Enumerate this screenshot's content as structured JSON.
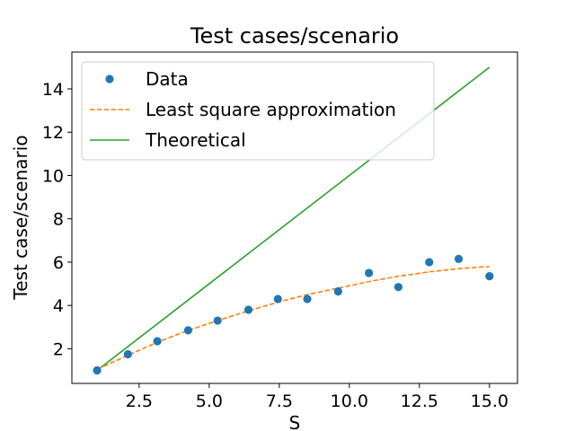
{
  "chart_data": {
    "type": "scatter",
    "title": "Test cases/scenario",
    "xlabel": "S",
    "ylabel": "Test case/scenario",
    "xlim": [
      0.1,
      16.0
    ],
    "ylim": [
      0.4,
      15.7
    ],
    "xticks": [
      2.5,
      5.0,
      7.5,
      10.0,
      12.5,
      15.0
    ],
    "xtick_labels": [
      "2.5",
      "5.0",
      "7.5",
      "10.0",
      "12.5",
      "15.0"
    ],
    "yticks": [
      2,
      4,
      6,
      8,
      10,
      12,
      14
    ],
    "ytick_labels": [
      "2",
      "4",
      "6",
      "8",
      "10",
      "12",
      "14"
    ],
    "grid": false,
    "legend_position": "top-left",
    "series": [
      {
        "name": "Data",
        "kind": "scatter",
        "color": "#1f77b4",
        "x": [
          1.0,
          2.1,
          3.15,
          4.25,
          5.3,
          6.4,
          7.45,
          8.5,
          9.6,
          10.7,
          11.75,
          12.85,
          13.9,
          15.0
        ],
        "y": [
          1.0,
          1.75,
          2.35,
          2.85,
          3.3,
          3.8,
          4.3,
          4.3,
          4.65,
          5.5,
          4.85,
          6.0,
          6.15,
          5.35
        ]
      },
      {
        "name": "Least square approximation",
        "kind": "line",
        "style": "dashed",
        "color": "#ff7f0e",
        "x": [
          1.0,
          2.1,
          3.15,
          4.25,
          5.3,
          6.4,
          7.45,
          8.5,
          9.6,
          10.7,
          11.75,
          12.85,
          13.9,
          15.0
        ],
        "y": [
          1.05,
          1.7,
          2.3,
          2.85,
          3.3,
          3.75,
          4.15,
          4.5,
          4.8,
          5.1,
          5.35,
          5.55,
          5.7,
          5.8
        ]
      },
      {
        "name": "Theoretical",
        "kind": "line",
        "style": "solid",
        "color": "#2ca02c",
        "x": [
          1.0,
          15.0
        ],
        "y": [
          1.0,
          15.0
        ]
      }
    ]
  }
}
